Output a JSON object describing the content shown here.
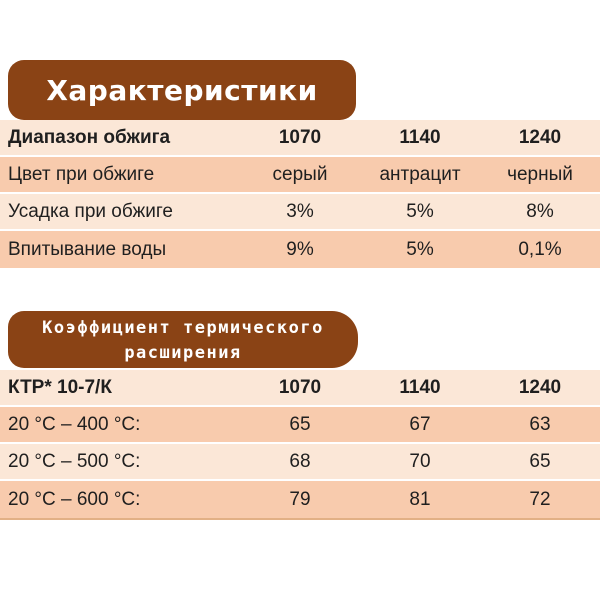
{
  "colors": {
    "brown": "#8a4315",
    "row_light": "#fbe7d7",
    "row_dark": "#f8cbad",
    "text": "#1f1f1f",
    "title_text": "#ffffff",
    "table_border": "#e2b085",
    "background": "#ffffff"
  },
  "section1": {
    "title": "Характеристики",
    "table": {
      "header": {
        "label": "Диапазон обжига",
        "values": [
          "1070",
          "1140",
          "1240"
        ]
      },
      "rows": [
        {
          "label": "Цвет при обжиге",
          "values": [
            "серый",
            "антрацит",
            "черный"
          ]
        },
        {
          "label": "Усадка при обжиге",
          "values": [
            "3%",
            "5%",
            "8%"
          ]
        },
        {
          "label": "Впитывание воды",
          "values": [
            "9%",
            "5%",
            "0,1%"
          ]
        }
      ]
    }
  },
  "section2": {
    "title_line1": "Коэффициент термического",
    "title_line2": "расширения",
    "table": {
      "header": {
        "label": "КТР* 10-7/К",
        "values": [
          "1070",
          "1140",
          "1240"
        ]
      },
      "rows": [
        {
          "label": "20 °C – 400 °C:",
          "values": [
            "65",
            "67",
            "63"
          ]
        },
        {
          "label": "20 °C – 500 °C:",
          "values": [
            "68",
            "70",
            "65"
          ]
        },
        {
          "label": "20 °C – 600 °C:",
          "values": [
            "79",
            "81",
            "72"
          ]
        }
      ]
    }
  }
}
